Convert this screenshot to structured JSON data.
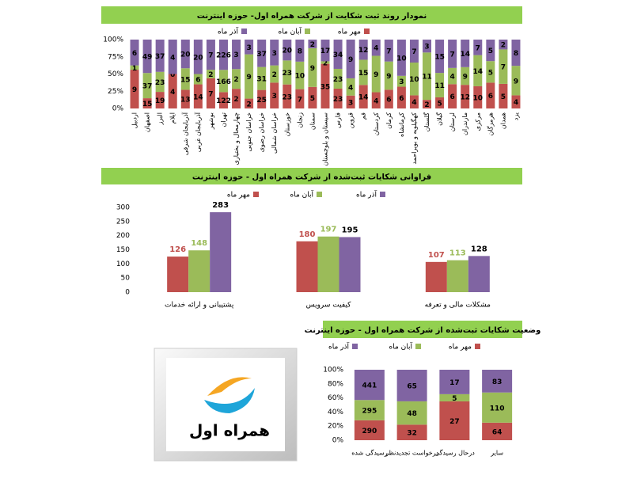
{
  "chart_data": [
    {
      "type": "bar",
      "stacked": "percent",
      "title": "نمودار روند ثبت شکایت از شرکت همراه اول- حوزه اینترنت",
      "categories": [
        "اردبیل",
        "اصفهان",
        "البرز",
        "ایلام",
        "آذربایجان شرقی",
        "آذربایجان غربی",
        "بوشهر",
        "تهران",
        "چهارمحال و بختیاری",
        "خراسان جنوبی",
        "خراسان رضوی",
        "خراسان شمالی",
        "خوزستان",
        "زنجان",
        "سمنان",
        "سیستان و بلوچستان",
        "فارس",
        "قزوین",
        "قم",
        "کردستان",
        "کرمان",
        "کرمانشاه",
        "کهگیلویه و بویراحمد",
        "گلستان",
        "گیلان",
        "لرستان",
        "مازندران",
        "مرکزی",
        "هرمزگان",
        "همدان",
        "یزد"
      ],
      "series": [
        {
          "name": "مهر ماه",
          "color": "#c0504d",
          "values": [
            9,
            15,
            19,
            4,
            13,
            14,
            7,
            122,
            2,
            2,
            25,
            3,
            23,
            7,
            5,
            35,
            23,
            3,
            14,
            4,
            6,
            6,
            4,
            2,
            5,
            6,
            12,
            10,
            6,
            5,
            4
          ]
        },
        {
          "name": "آبان ماه",
          "color": "#9bbb59",
          "values": [
            1,
            37,
            23,
            0,
            15,
            6,
            2,
            166,
            2,
            9,
            31,
            2,
            23,
            10,
            9,
            2,
            23,
            4,
            15,
            9,
            9,
            3,
            10,
            11,
            11,
            4,
            9,
            14,
            5,
            7,
            9
          ]
        },
        {
          "name": "آذر ماه",
          "color": "#8064a2",
          "values": [
            6,
            49,
            37,
            4,
            20,
            20,
            7,
            226,
            3,
            3,
            37,
            3,
            20,
            8,
            2,
            17,
            34,
            9,
            12,
            4,
            7,
            10,
            7,
            3,
            15,
            7,
            14,
            7,
            5,
            2,
            8
          ]
        }
      ],
      "ylim": [
        0,
        100
      ],
      "yticks": [
        {
          "value": 0,
          "label": "0%"
        },
        {
          "value": 25,
          "label": "25%"
        },
        {
          "value": 50,
          "label": "50%"
        },
        {
          "value": 75,
          "label": "75%"
        },
        {
          "value": 100,
          "label": "100%"
        }
      ]
    },
    {
      "type": "bar",
      "stacked": "none",
      "title": "فراوانی شکایات ثبت‌شده از شرکت همراه اول  - حوزه اینترنت",
      "categories": [
        "پشتیبانی و ارائه خدمات",
        "کیفیت سرویس",
        "مشکلات مالی و تعرفه"
      ],
      "series": [
        {
          "name": "مهر ماه",
          "color": "#c0504d",
          "label_color": "#c0504d",
          "values": [
            126,
            180,
            107
          ]
        },
        {
          "name": "آبان ماه",
          "color": "#9bbb59",
          "label_color": "#9bbb59",
          "values": [
            148,
            197,
            113
          ]
        },
        {
          "name": "آذر ماه",
          "color": "#8064a2",
          "label_color": "#000000",
          "values": [
            283,
            195,
            128
          ]
        }
      ],
      "ylim": [
        0,
        300
      ],
      "yticks": [
        0,
        50,
        100,
        150,
        200,
        250,
        300
      ]
    },
    {
      "type": "bar",
      "stacked": "percent",
      "title": "وضعیت شکایات ثبت‌شده از شرکت همراه اول - حوزه اینترنت",
      "categories": [
        "رسیدگی شده",
        "درخواست تجدیدنظر",
        "درحال رسیدگی",
        "سایر"
      ],
      "series": [
        {
          "name": "مهر ماه",
          "color": "#c0504d",
          "values": [
            290,
            32,
            27,
            64
          ]
        },
        {
          "name": "آبان ماه",
          "color": "#9bbb59",
          "values": [
            295,
            48,
            5,
            110
          ]
        },
        {
          "name": "آذر ماه",
          "color": "#8064a2",
          "values": [
            441,
            65,
            17,
            83
          ]
        }
      ],
      "ylim": [
        0,
        100
      ],
      "yticks": [
        {
          "value": 0,
          "label": "0%"
        },
        {
          "value": 20,
          "label": "20%"
        },
        {
          "value": 40,
          "label": "40%"
        },
        {
          "value": 60,
          "label": "60%"
        },
        {
          "value": 80,
          "label": "80%"
        },
        {
          "value": 100,
          "label": "100%"
        }
      ]
    }
  ],
  "logo": {
    "text": "همراه اول"
  }
}
